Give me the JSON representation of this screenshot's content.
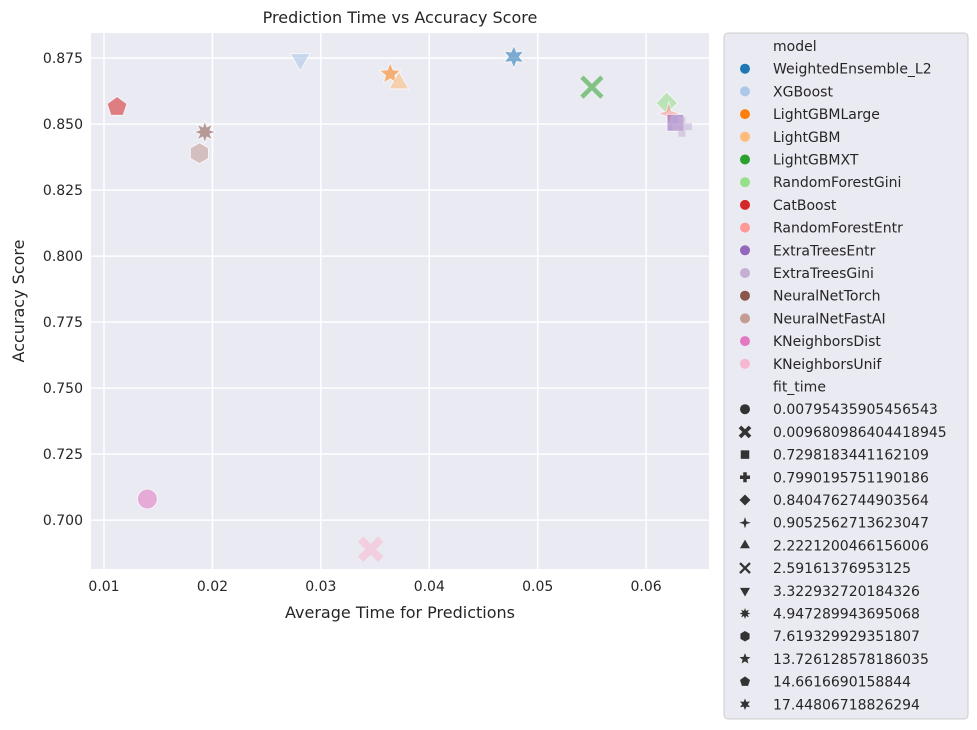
{
  "chart_data": {
    "type": "scatter",
    "title": "Prediction Time vs Accuracy Score",
    "xlabel": "Average Time for Predictions",
    "ylabel": "Accuracy Score",
    "xlim": [
      0.0088,
      0.0658
    ],
    "ylim": [
      0.6815,
      0.8845
    ],
    "xticks": [
      0.01,
      0.02,
      0.03,
      0.04,
      0.05,
      0.06
    ],
    "xtick_labels": [
      "0.01",
      "0.02",
      "0.03",
      "0.04",
      "0.05",
      "0.06"
    ],
    "yticks": [
      0.7,
      0.725,
      0.75,
      0.775,
      0.8,
      0.825,
      0.85,
      0.875
    ],
    "ytick_labels": [
      "0.700",
      "0.725",
      "0.750",
      "0.775",
      "0.800",
      "0.825",
      "0.850",
      "0.875"
    ],
    "grid": true,
    "legend_placement": "outside-right",
    "hue_title": "model",
    "style_title": "fit_time",
    "models": [
      {
        "name": "WeightedEnsemble_L2",
        "color": "#1f77b4"
      },
      {
        "name": "XGBoost",
        "color": "#aec7e8"
      },
      {
        "name": "LightGBMLarge",
        "color": "#ff7f0e"
      },
      {
        "name": "LightGBM",
        "color": "#ffbb78"
      },
      {
        "name": "LightGBMXT",
        "color": "#2ca02c"
      },
      {
        "name": "RandomForestGini",
        "color": "#98df8a"
      },
      {
        "name": "CatBoost",
        "color": "#d62728"
      },
      {
        "name": "RandomForestEntr",
        "color": "#ff9896"
      },
      {
        "name": "ExtraTreesEntr",
        "color": "#9467bd"
      },
      {
        "name": "ExtraTreesGini",
        "color": "#c5b0d5"
      },
      {
        "name": "NeuralNetTorch",
        "color": "#8c564b"
      },
      {
        "name": "NeuralNetFastAI",
        "color": "#c49c94"
      },
      {
        "name": "KNeighborsDist",
        "color": "#e377c2"
      },
      {
        "name": "KNeighborsUnif",
        "color": "#f7b6d2"
      }
    ],
    "fit_times": [
      {
        "label": "0.00795435905456543",
        "marker": "circle"
      },
      {
        "label": "0.009680986404418945",
        "marker": "x"
      },
      {
        "label": "0.7298183441162109",
        "marker": "square"
      },
      {
        "label": "0.7990195751190186",
        "marker": "plus"
      },
      {
        "label": "0.8404762744903564",
        "marker": "diamond"
      },
      {
        "label": "0.9052562713623047",
        "marker": "star4"
      },
      {
        "label": "2.2221200466156006",
        "marker": "triangle-up"
      },
      {
        "label": "2.59161376953125",
        "marker": "x-thin"
      },
      {
        "label": "3.322932720184326",
        "marker": "triangle-down"
      },
      {
        "label": "4.947289943695068",
        "marker": "star8"
      },
      {
        "label": "7.619329929351807",
        "marker": "hexagon"
      },
      {
        "label": "13.726128578186035",
        "marker": "star5"
      },
      {
        "label": "14.6616690158844",
        "marker": "pentagon"
      },
      {
        "label": "17.44806718826294",
        "marker": "star6"
      }
    ],
    "points": [
      {
        "model": "WeightedEnsemble_L2",
        "fit_time": "17.44806718826294",
        "x": 0.0478,
        "y": 0.8755
      },
      {
        "model": "XGBoost",
        "fit_time": "3.322932720184326",
        "x": 0.0281,
        "y": 0.8745
      },
      {
        "model": "LightGBMLarge",
        "fit_time": "13.726128578186035",
        "x": 0.0364,
        "y": 0.869
      },
      {
        "model": "LightGBM",
        "fit_time": "2.2221200466156006",
        "x": 0.0372,
        "y": 0.8655
      },
      {
        "model": "LightGBMXT",
        "fit_time": "2.59161376953125",
        "x": 0.055,
        "y": 0.864
      },
      {
        "model": "RandomForestGini",
        "fit_time": "0.8404762744903564",
        "x": 0.0619,
        "y": 0.858
      },
      {
        "model": "CatBoost",
        "fit_time": "14.6616690158844",
        "x": 0.0112,
        "y": 0.8565
      },
      {
        "model": "RandomForestEntr",
        "fit_time": "0.9052562713623047",
        "x": 0.0621,
        "y": 0.854
      },
      {
        "model": "ExtraTreesEntr",
        "fit_time": "0.7298183441162109",
        "x": 0.0627,
        "y": 0.8505
      },
      {
        "model": "ExtraTreesGini",
        "fit_time": "0.7990195751190186",
        "x": 0.0633,
        "y": 0.849
      },
      {
        "model": "NeuralNetTorch",
        "fit_time": "4.947289943695068",
        "x": 0.0193,
        "y": 0.847
      },
      {
        "model": "NeuralNetFastAI",
        "fit_time": "7.619329929351807",
        "x": 0.0188,
        "y": 0.839
      },
      {
        "model": "KNeighborsDist",
        "fit_time": "0.00795435905456543",
        "x": 0.014,
        "y": 0.708
      },
      {
        "model": "KNeighborsUnif",
        "fit_time": "0.009680986404418945",
        "x": 0.0346,
        "y": 0.689
      }
    ]
  }
}
